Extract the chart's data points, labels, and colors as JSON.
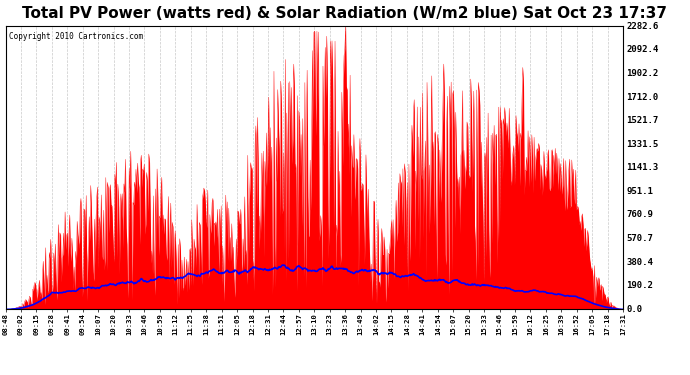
{
  "title": "Total PV Power (watts red) & Solar Radiation (W/m2 blue) Sat Oct 23 17:37",
  "copyright": "Copyright 2010 Cartronics.com",
  "y_max": 2282.6,
  "y_min": 0.0,
  "y_ticks": [
    0.0,
    190.2,
    380.4,
    570.7,
    760.9,
    951.1,
    1141.3,
    1331.5,
    1521.7,
    1712.0,
    1902.2,
    2092.4,
    2282.6
  ],
  "x_labels": [
    "08:48",
    "09:02",
    "09:15",
    "09:28",
    "09:41",
    "09:54",
    "10:07",
    "10:20",
    "10:33",
    "10:46",
    "10:59",
    "11:12",
    "11:25",
    "11:38",
    "11:51",
    "12:05",
    "12:18",
    "12:31",
    "12:44",
    "12:57",
    "13:10",
    "13:23",
    "13:36",
    "13:49",
    "14:02",
    "14:15",
    "14:28",
    "14:41",
    "14:54",
    "15:07",
    "15:20",
    "15:33",
    "15:46",
    "15:59",
    "16:12",
    "16:25",
    "16:39",
    "16:52",
    "17:05",
    "17:18",
    "17:31"
  ],
  "bg_color": "#ffffff",
  "plot_bg_color": "#ffffff",
  "grid_color": "#bbbbbb",
  "title_fontsize": 11,
  "title_color": "#000000",
  "border_color": "#000000",
  "n_labels": 41,
  "n_points": 820
}
